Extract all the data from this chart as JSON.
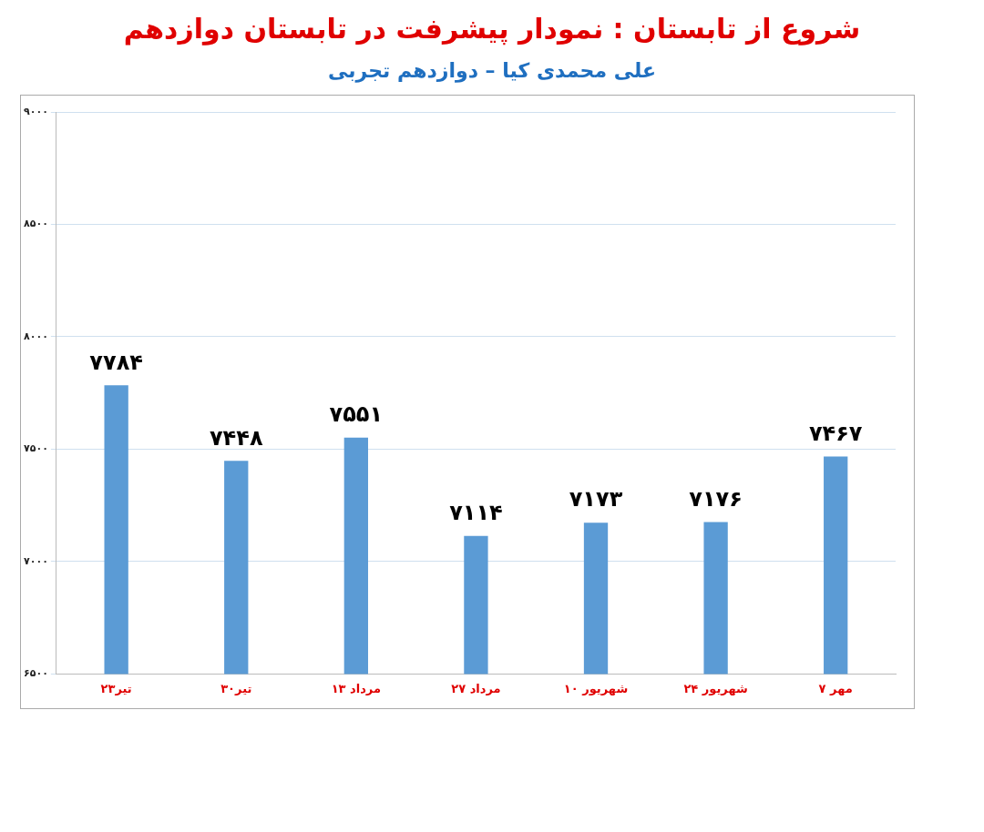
{
  "chart_data": {
    "type": "bar",
    "title": "شروع از تابستان : نمودار پیشرفت در تابستان دوازدهم",
    "subtitle": "علی محمدی کیا – دوازدهم تجربی",
    "categories": [
      "۲۳تیر",
      "۳۰تیر",
      "۱۳ مرداد",
      "۲۷ مرداد",
      "۱۰ شهریور",
      "۲۴ شهریور",
      "۷ مهر"
    ],
    "values": [
      7784,
      7448,
      7551,
      7114,
      7173,
      7176,
      7467
    ],
    "value_labels": [
      "۷۷۸۴",
      "۷۴۴۸",
      "۷۵۵۱",
      "۷۱۱۴",
      "۷۱۷۳",
      "۷۱۷۶",
      "۷۴۶۷"
    ],
    "color": "#5b9bd5",
    "ylim": [
      6500,
      9000
    ],
    "yticks": [
      {
        "value": 6500,
        "label": "۶۵۰۰"
      },
      {
        "value": 7000,
        "label": "۷۰۰۰"
      },
      {
        "value": 7500,
        "label": "۷۵۰۰"
      },
      {
        "value": 8000,
        "label": "۸۰۰۰"
      },
      {
        "value": 8500,
        "label": "۸۵۰۰"
      },
      {
        "value": 9000,
        "label": "۹۰۰۰"
      }
    ],
    "grid": "y"
  }
}
